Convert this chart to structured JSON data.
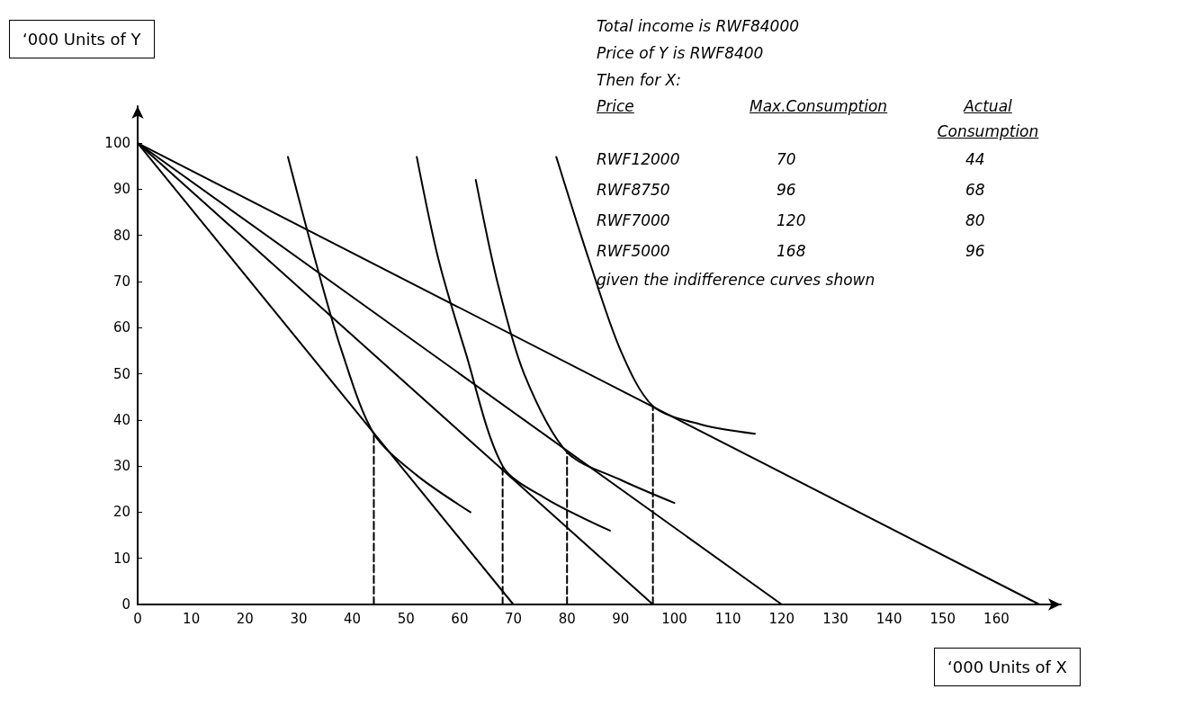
{
  "chart_data": {
    "type": "line",
    "xlabel": "‘000 Units of X",
    "ylabel": "‘000 Units of Y",
    "xlim": [
      0,
      172
    ],
    "ylim": [
      0,
      108
    ],
    "xticks": [
      0,
      10,
      20,
      30,
      40,
      50,
      60,
      70,
      80,
      90,
      100,
      110,
      120,
      130,
      140,
      150,
      160
    ],
    "yticks": [
      0,
      10,
      20,
      30,
      40,
      50,
      60,
      70,
      80,
      90,
      100
    ],
    "grid": false,
    "marker": "none",
    "series": [
      {
        "color": "#000000",
        "x": [
          0,
          70
        ],
        "values": [
          100,
          0
        ]
      },
      {
        "color": "#000000",
        "x": [
          0,
          96
        ],
        "values": [
          100,
          0
        ]
      },
      {
        "color": "#000000",
        "x": [
          0,
          120
        ],
        "values": [
          100,
          0
        ]
      },
      {
        "color": "#000000",
        "x": [
          0,
          168
        ],
        "values": [
          100,
          0
        ]
      },
      {
        "color": "#000000",
        "x": [
          28,
          33,
          38,
          44,
          52,
          62
        ],
        "values": [
          97,
          75,
          55,
          37,
          28,
          20
        ]
      },
      {
        "color": "#000000",
        "x": [
          52,
          56,
          61,
          68,
          76,
          88
        ],
        "values": [
          97,
          75,
          55,
          30,
          23,
          16
        ]
      },
      {
        "color": "#000000",
        "x": [
          63,
          67,
          72,
          80,
          90,
          100
        ],
        "values": [
          92,
          70,
          50,
          33,
          27,
          22
        ]
      },
      {
        "color": "#000000",
        "x": [
          78,
          84,
          90,
          96,
          105,
          115
        ],
        "values": [
          97,
          75,
          55,
          43,
          39,
          37
        ]
      },
      {
        "color": "#000000",
        "line_style": "dashed",
        "x": [
          44,
          44
        ],
        "values": [
          0,
          37
        ]
      },
      {
        "color": "#000000",
        "line_style": "dashed",
        "x": [
          68,
          68
        ],
        "values": [
          0,
          30
        ]
      },
      {
        "color": "#000000",
        "line_style": "dashed",
        "x": [
          80,
          80
        ],
        "values": [
          0,
          33
        ]
      },
      {
        "color": "#000000",
        "line_style": "dashed",
        "x": [
          96,
          96
        ],
        "values": [
          0,
          43
        ]
      }
    ],
    "annotations": [
      "Total income is RWF84000",
      "Price of Y is RWF8400",
      "Then for X:",
      "Price",
      "Max.Consumption",
      "Actual Consumption",
      "RWF12000",
      "70",
      "44",
      "RWF8750",
      "96",
      "68",
      "RWF7000",
      "120",
      "80",
      "RWF5000",
      "168",
      "96",
      "given the indifference curves shown"
    ]
  }
}
